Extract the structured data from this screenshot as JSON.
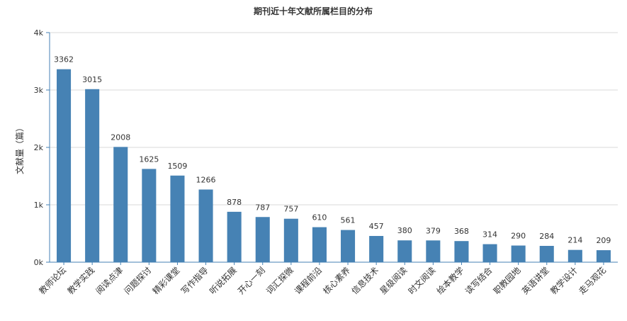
{
  "chart_data": {
    "type": "bar",
    "title": "期刊近十年文献所属栏目的分布",
    "xlabel": "",
    "ylabel": "文献量（篇）",
    "ylim": [
      0,
      4000
    ],
    "yticks": [
      0,
      1000,
      2000,
      3000,
      4000
    ],
    "ytick_labels": [
      "0k",
      "1k",
      "2k",
      "3k",
      "4k"
    ],
    "grid": true,
    "bar_color": "#4682b4",
    "categories": [
      "教师论坛",
      "教学实践",
      "阅读点津",
      "问题探讨",
      "精彩课堂",
      "写作指导",
      "听说拓展",
      "开心一刻",
      "词汇探微",
      "课程前沿",
      "核心素养",
      "信息技术",
      "星级阅读",
      "时文阅读",
      "绘本教学",
      "读写结合",
      "职教园地",
      "英语讲堂",
      "教学设计",
      "走马观花"
    ],
    "values": [
      3362,
      3015,
      2008,
      1625,
      1509,
      1266,
      878,
      787,
      757,
      610,
      561,
      457,
      380,
      379,
      368,
      314,
      290,
      284,
      214,
      209
    ]
  }
}
